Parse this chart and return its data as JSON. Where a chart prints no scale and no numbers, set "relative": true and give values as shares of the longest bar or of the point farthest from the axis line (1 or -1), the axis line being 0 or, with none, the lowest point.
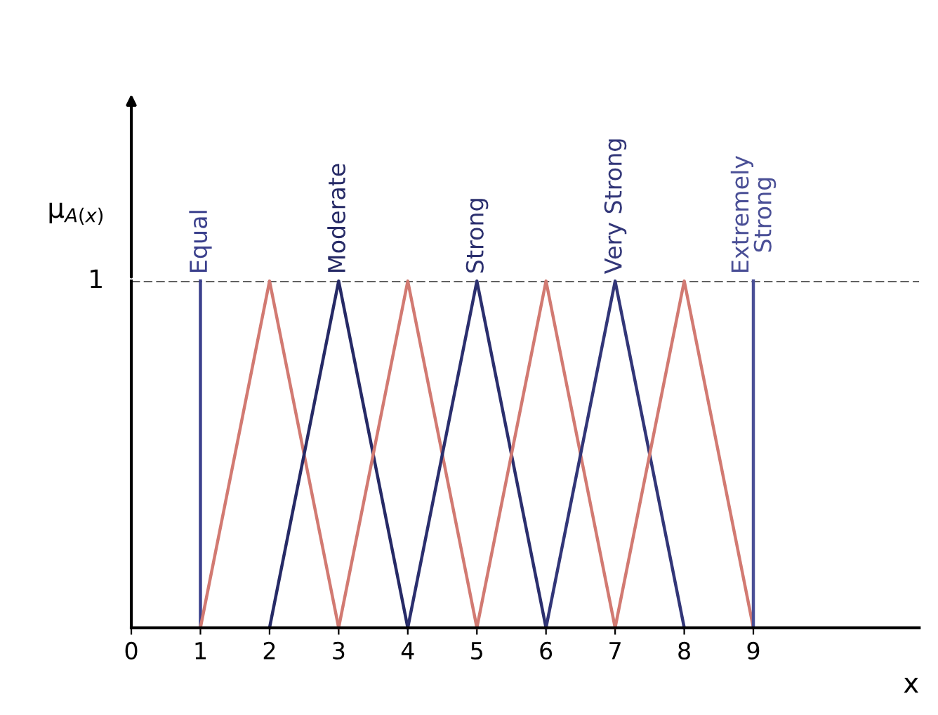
{
  "chart_data": {
    "type": "line",
    "xlabel": "x",
    "ylabel": "μ$_{A(x)}$",
    "xlim": [
      0,
      11.4
    ],
    "relative": true,
    "xticks": [
      0,
      1,
      2,
      3,
      4,
      5,
      6,
      7,
      8,
      9
    ],
    "annotations": [
      {
        "text": "1",
        "x": 0,
        "y": 1
      }
    ],
    "grid": false,
    "legend": false,
    "marker": "none",
    "line_style": "solid",
    "ref_lines": [
      {
        "axis": "y",
        "value": 1,
        "label": null,
        "color": "#555555",
        "line_style": "dashed"
      }
    ],
    "series": [
      {
        "name": "Equal",
        "color": "#3a3f8c",
        "x": [
          1,
          1
        ],
        "values": [
          0,
          1
        ]
      },
      {
        "color": "#d27a72",
        "x": [
          1,
          2,
          3
        ],
        "values": [
          0,
          1,
          0
        ]
      },
      {
        "name": "Moderate",
        "color": "#262a66",
        "x": [
          2,
          3,
          4
        ],
        "values": [
          0,
          1,
          0
        ]
      },
      {
        "color": "#d27a72",
        "x": [
          3,
          4,
          5
        ],
        "values": [
          0,
          1,
          0
        ]
      },
      {
        "name": "Strong",
        "color": "#2b2f6e",
        "x": [
          4,
          5,
          6
        ],
        "values": [
          0,
          1,
          0
        ]
      },
      {
        "color": "#d27a72",
        "x": [
          5,
          6,
          7
        ],
        "values": [
          0,
          1,
          0
        ]
      },
      {
        "name": "Very Strong",
        "color": "#323678",
        "x": [
          6,
          7,
          8
        ],
        "values": [
          0,
          1,
          0
        ]
      },
      {
        "color": "#d27a72",
        "x": [
          7,
          8,
          9
        ],
        "values": [
          0,
          1,
          0
        ]
      },
      {
        "name": "Extremely\nStrong",
        "color": "#4a4f96",
        "x": [
          9,
          9
        ],
        "values": [
          0,
          1
        ]
      }
    ]
  }
}
